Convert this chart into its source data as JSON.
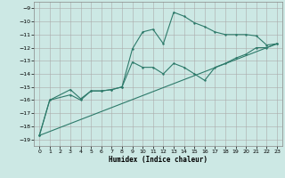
{
  "xlabel": "Humidex (Indice chaleur)",
  "bg_color": "#cce8e4",
  "grid_color_major": "#b0b0b0",
  "line_color": "#2d7a6a",
  "xlim": [
    -0.5,
    23.5
  ],
  "ylim": [
    -19.5,
    -8.5
  ],
  "yticks": [
    -19,
    -18,
    -17,
    -16,
    -15,
    -14,
    -13,
    -12,
    -11,
    -10,
    -9
  ],
  "xticks": [
    0,
    1,
    2,
    3,
    4,
    5,
    6,
    7,
    8,
    9,
    10,
    11,
    12,
    13,
    14,
    15,
    16,
    17,
    18,
    19,
    20,
    21,
    22,
    23
  ],
  "line1_x": [
    0,
    1,
    3,
    4,
    5,
    6,
    7,
    8,
    9,
    10,
    11,
    12,
    13,
    14,
    15,
    16,
    17,
    18,
    19,
    20,
    21,
    22,
    23
  ],
  "line1_y": [
    -18.7,
    -16.0,
    -15.2,
    -15.9,
    -15.3,
    -15.3,
    -15.2,
    -15.0,
    -12.1,
    -10.8,
    -10.6,
    -11.7,
    -9.3,
    -9.6,
    -10.1,
    -10.4,
    -10.8,
    -11.0,
    -11.0,
    -11.0,
    -11.1,
    -11.8,
    -11.7
  ],
  "line2_x": [
    0,
    1,
    3,
    4,
    5,
    6,
    7,
    8,
    9,
    10,
    11,
    12,
    13,
    14,
    15,
    16,
    17,
    18,
    19,
    20,
    21,
    22,
    23
  ],
  "line2_y": [
    -18.7,
    -16.0,
    -15.6,
    -16.0,
    -15.3,
    -15.3,
    -15.2,
    -15.0,
    -13.1,
    -13.5,
    -13.5,
    -14.0,
    -13.2,
    -13.5,
    -14.0,
    -14.5,
    -13.5,
    -13.2,
    -12.8,
    -12.5,
    -12.0,
    -12.0,
    -11.7
  ],
  "line3_x": [
    0,
    23
  ],
  "line3_y": [
    -18.7,
    -11.7
  ]
}
